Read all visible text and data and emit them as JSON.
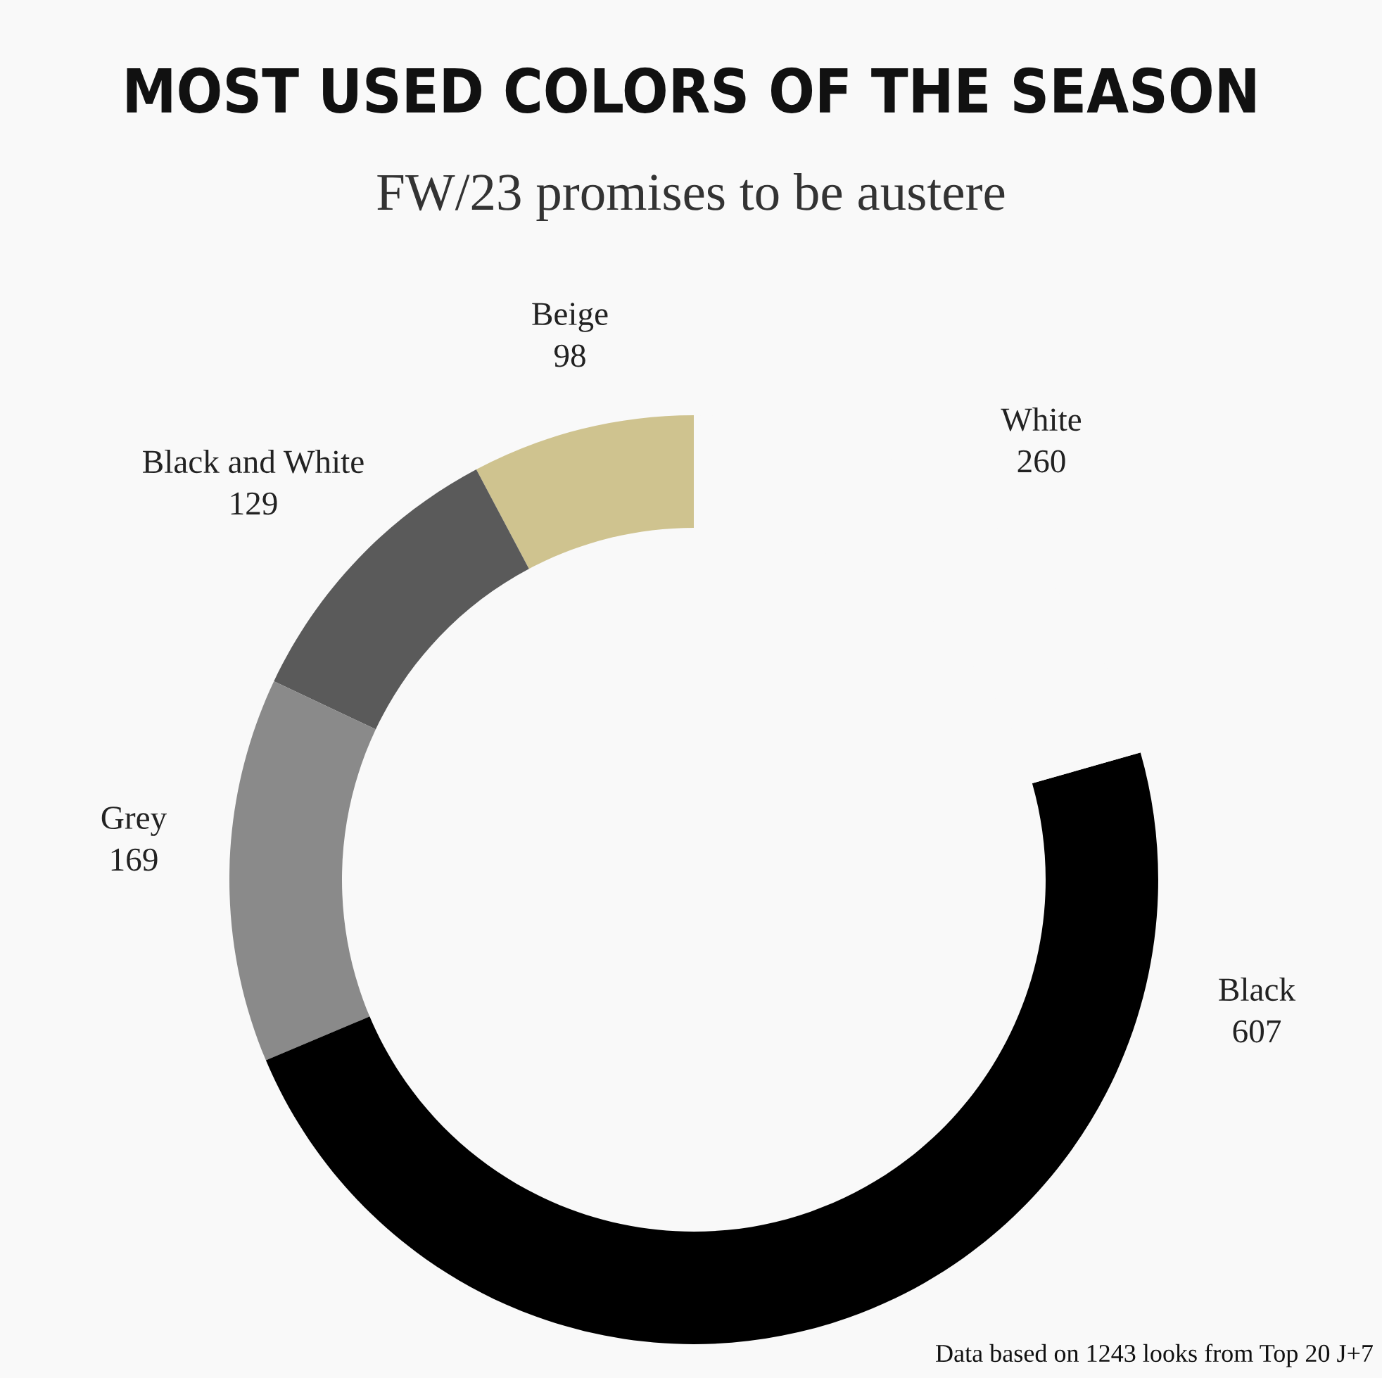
{
  "chart_data": {
    "type": "donut",
    "title": "MOST USED COLORS OF THE SEASON",
    "subtitle": "FW/23 promises to be austere",
    "categories": [
      "Beige",
      "Black and White",
      "Grey",
      "Black",
      "White"
    ],
    "values": [
      98,
      129,
      169,
      607,
      260
    ],
    "colors": [
      "#cfc38f",
      "#5a5a5a",
      "#8a8a8a",
      "#000000",
      "#f9f9f9"
    ],
    "data_labels": true,
    "annotations": [
      "Data based on 1243 looks from Top 20 J+7"
    ]
  }
}
